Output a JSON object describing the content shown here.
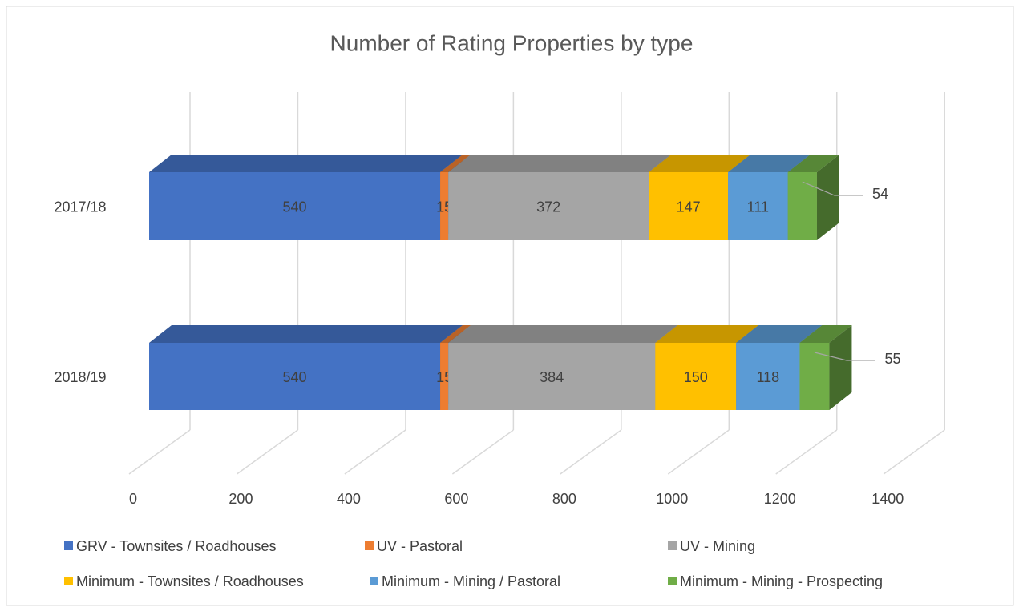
{
  "chart_data": {
    "type": "bar3d_stacked_horizontal",
    "title": "Number of Rating Properties by type",
    "categories": [
      "2017/18",
      "2018/19"
    ],
    "series": [
      {
        "name": "GRV - Townsites / Roadhouses",
        "color": "#4472c4",
        "values": [
          540,
          540
        ]
      },
      {
        "name": "UV - Pastoral",
        "color": "#ed7d31",
        "values": [
          15,
          15
        ]
      },
      {
        "name": "UV - Mining",
        "color": "#a5a5a5",
        "values": [
          372,
          384
        ]
      },
      {
        "name": "Minimum - Townsites / Roadhouses",
        "color": "#ffc000",
        "values": [
          147,
          150
        ]
      },
      {
        "name": "Minimum - Mining / Pastoral",
        "color": "#5b9bd5",
        "values": [
          111,
          118
        ]
      },
      {
        "name": "Minimum - Mining  - Prospecting",
        "color": "#70ad47",
        "values": [
          54,
          55
        ]
      }
    ],
    "xlim": [
      0,
      1400
    ],
    "xticks": [
      0,
      200,
      400,
      600,
      800,
      1000,
      1200,
      1400
    ],
    "grid": true,
    "legend": "bottom"
  }
}
